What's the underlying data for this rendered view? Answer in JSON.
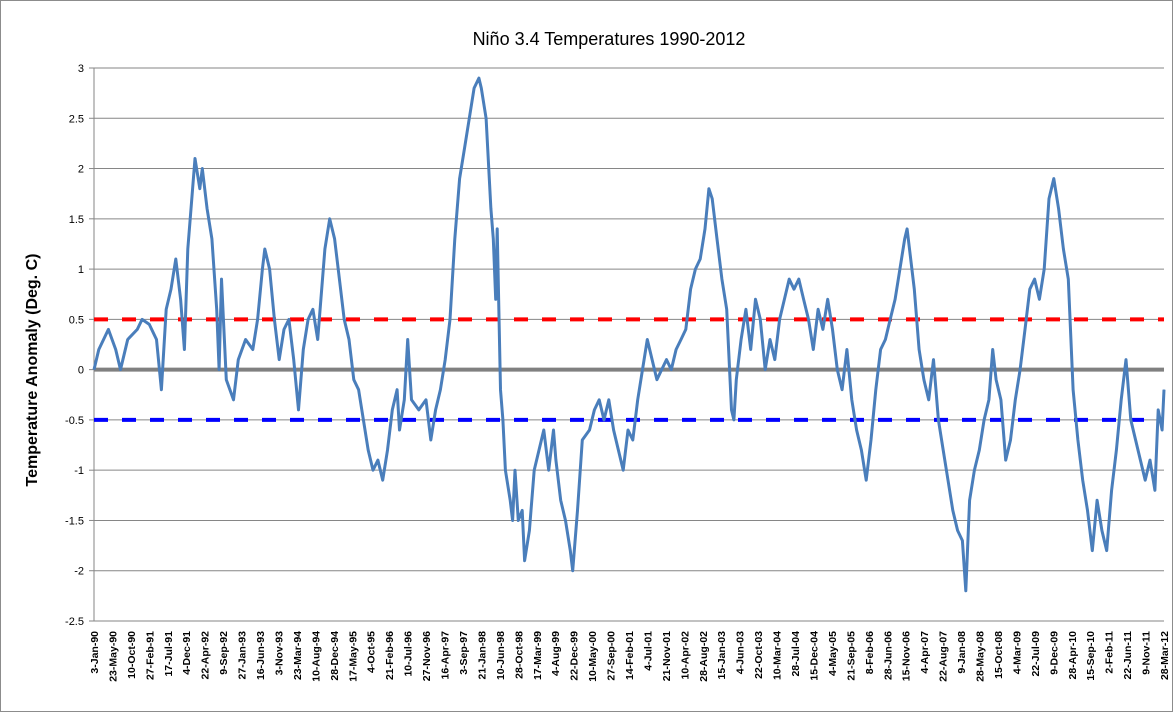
{
  "chart_data": {
    "type": "line",
    "title": "Niño 3.4 Temperatures 1990-2012",
    "xlabel": "",
    "ylabel": "Temperature Anomaly (Deg. C)",
    "ylim": [
      -2.5,
      3
    ],
    "yticks": [
      3,
      2.5,
      2,
      1.5,
      1,
      0.5,
      0,
      -0.5,
      -1,
      -1.5,
      -2,
      -2.5
    ],
    "ytick_labels": [
      "3",
      "2.5",
      "2",
      "1.5",
      "1",
      "0.5",
      "0",
      "-0.5",
      "-1",
      "-1.5",
      "-2",
      "-2.5"
    ],
    "xlim": [
      1990.0,
      2012.24
    ],
    "xtick_labels": [
      "3-Jan-90",
      "23-May-90",
      "10-Oct-90",
      "27-Feb-91",
      "17-Jul-91",
      "4-Dec-91",
      "22-Apr-92",
      "9-Sep-92",
      "27-Jan-93",
      "16-Jun-93",
      "3-Nov-93",
      "23-Mar-94",
      "10-Aug-94",
      "28-Dec-94",
      "17-May-95",
      "4-Oct-95",
      "21-Feb-96",
      "10-Jul-96",
      "27-Nov-96",
      "16-Apr-97",
      "3-Sep-97",
      "21-Jan-98",
      "10-Jun-98",
      "28-Oct-98",
      "17-Mar-99",
      "4-Aug-99",
      "22-Dec-99",
      "10-May-00",
      "27-Sep-00",
      "14-Feb-01",
      "4-Jul-01",
      "21-Nov-01",
      "10-Apr-02",
      "28-Aug-02",
      "15-Jan-03",
      "4-Jun-03",
      "22-Oct-03",
      "10-Mar-04",
      "28-Jul-04",
      "15-Dec-04",
      "4-May-05",
      "21-Sep-05",
      "8-Feb-06",
      "28-Jun-06",
      "15-Nov-06",
      "4-Apr-07",
      "22-Aug-07",
      "9-Jan-08",
      "28-May-08",
      "15-Oct-08",
      "4-Mar-09",
      "22-Jul-09",
      "9-Dec-09",
      "28-Apr-10",
      "15-Sep-10",
      "2-Feb-11",
      "22-Jun-11",
      "9-Nov-11",
      "28-Mar-12"
    ],
    "grid": true,
    "reference_lines": [
      {
        "name": "el-nino-threshold",
        "value": 0.5,
        "color": "#ff0000",
        "style": "dashed"
      },
      {
        "name": "zero-line",
        "value": 0,
        "color": "#808080",
        "style": "solid"
      },
      {
        "name": "la-nina-threshold",
        "value": -0.5,
        "color": "#0000ff",
        "style": "dashed"
      }
    ],
    "series": [
      {
        "name": "Niño 3.4 anomaly",
        "color": "#4a7ebb",
        "x": [
          1990.0,
          1990.1,
          1990.3,
          1990.45,
          1990.55,
          1990.7,
          1990.9,
          1991.0,
          1991.15,
          1991.3,
          1991.4,
          1991.5,
          1991.6,
          1991.7,
          1991.8,
          1991.88,
          1991.95,
          1992.05,
          1992.1,
          1992.2,
          1992.25,
          1992.35,
          1992.45,
          1992.55,
          1992.6,
          1992.65,
          1992.75,
          1992.9,
          1993.0,
          1993.15,
          1993.3,
          1993.4,
          1993.5,
          1993.55,
          1993.65,
          1993.75,
          1993.85,
          1993.95,
          1994.05,
          1994.15,
          1994.25,
          1994.35,
          1994.45,
          1994.55,
          1994.65,
          1994.7,
          1994.8,
          1994.9,
          1995.0,
          1995.1,
          1995.2,
          1995.3,
          1995.4,
          1995.5,
          1995.6,
          1995.7,
          1995.8,
          1995.9,
          1996.0,
          1996.1,
          1996.2,
          1996.3,
          1996.35,
          1996.45,
          1996.52,
          1996.6,
          1996.75,
          1996.9,
          1997.0,
          1997.1,
          1997.2,
          1997.3,
          1997.4,
          1997.5,
          1997.6,
          1997.7,
          1997.8,
          1997.9,
          1998.0,
          1998.05,
          1998.15,
          1998.25,
          1998.3,
          1998.35,
          1998.38,
          1998.45,
          1998.5,
          1998.55,
          1998.65,
          1998.7,
          1998.75,
          1998.82,
          1998.9,
          1998.95,
          1999.05,
          1999.15,
          1999.25,
          1999.35,
          1999.45,
          1999.55,
          1999.6,
          1999.7,
          1999.8,
          1999.9,
          1999.95,
          2000.05,
          2000.15,
          2000.3,
          2000.4,
          2000.5,
          2000.6,
          2000.7,
          2000.8,
          2000.9,
          2001.0,
          2001.1,
          2001.2,
          2001.3,
          2001.4,
          2001.5,
          2001.6,
          2001.7,
          2001.8,
          2001.9,
          2002.0,
          2002.1,
          2002.2,
          2002.3,
          2002.4,
          2002.5,
          2002.6,
          2002.7,
          2002.78,
          2002.85,
          2002.95,
          2003.05,
          2003.15,
          2003.25,
          2003.3,
          2003.35,
          2003.45,
          2003.55,
          2003.65,
          2003.75,
          2003.85,
          2003.95,
          2004.05,
          2004.15,
          2004.25,
          2004.35,
          2004.45,
          2004.55,
          2004.65,
          2004.75,
          2004.85,
          2004.95,
          2005.05,
          2005.15,
          2005.25,
          2005.35,
          2005.45,
          2005.55,
          2005.65,
          2005.75,
          2005.85,
          2005.95,
          2006.05,
          2006.15,
          2006.25,
          2006.35,
          2006.45,
          2006.55,
          2006.65,
          2006.75,
          2006.85,
          2006.9,
          2006.95,
          2007.05,
          2007.15,
          2007.25,
          2007.35,
          2007.45,
          2007.55,
          2007.65,
          2007.75,
          2007.85,
          2007.95,
          2008.05,
          2008.12,
          2008.2,
          2008.3,
          2008.4,
          2008.5,
          2008.6,
          2008.68,
          2008.75,
          2008.85,
          2008.95,
          2009.05,
          2009.15,
          2009.25,
          2009.35,
          2009.45,
          2009.55,
          2009.65,
          2009.75,
          2009.85,
          2009.95,
          2010.05,
          2010.15,
          2010.25,
          2010.35,
          2010.45,
          2010.55,
          2010.65,
          2010.75,
          2010.85,
          2010.95,
          2011.05,
          2011.15,
          2011.25,
          2011.35,
          2011.45,
          2011.55,
          2011.65,
          2011.75,
          2011.85,
          2011.95,
          2012.05,
          2012.12,
          2012.2,
          2012.24
        ],
        "values": [
          0.0,
          0.2,
          0.4,
          0.2,
          0.0,
          0.3,
          0.4,
          0.5,
          0.45,
          0.3,
          -0.2,
          0.6,
          0.8,
          1.1,
          0.7,
          0.2,
          1.2,
          1.8,
          2.1,
          1.8,
          2.0,
          1.6,
          1.3,
          0.6,
          0.0,
          0.9,
          -0.1,
          -0.3,
          0.1,
          0.3,
          0.2,
          0.5,
          1.0,
          1.2,
          1.0,
          0.5,
          0.1,
          0.4,
          0.5,
          0.1,
          -0.4,
          0.2,
          0.5,
          0.6,
          0.3,
          0.6,
          1.2,
          1.5,
          1.3,
          0.9,
          0.5,
          0.3,
          -0.1,
          -0.2,
          -0.5,
          -0.8,
          -1.0,
          -0.9,
          -1.1,
          -0.8,
          -0.4,
          -0.2,
          -0.6,
          -0.3,
          0.3,
          -0.3,
          -0.4,
          -0.3,
          -0.7,
          -0.4,
          -0.2,
          0.1,
          0.5,
          1.3,
          1.9,
          2.2,
          2.5,
          2.8,
          2.9,
          2.8,
          2.5,
          1.6,
          1.3,
          0.7,
          1.4,
          -0.2,
          -0.5,
          -1.0,
          -1.3,
          -1.5,
          -1.0,
          -1.5,
          -1.4,
          -1.9,
          -1.6,
          -1.0,
          -0.8,
          -0.6,
          -1.0,
          -0.6,
          -0.9,
          -1.3,
          -1.5,
          -1.8,
          -2.0,
          -1.4,
          -0.7,
          -0.6,
          -0.4,
          -0.3,
          -0.5,
          -0.3,
          -0.6,
          -0.8,
          -1.0,
          -0.6,
          -0.7,
          -0.3,
          0.0,
          0.3,
          0.1,
          -0.1,
          0.0,
          0.1,
          0.0,
          0.2,
          0.3,
          0.4,
          0.8,
          1.0,
          1.1,
          1.4,
          1.8,
          1.7,
          1.3,
          0.9,
          0.6,
          -0.4,
          -0.5,
          -0.1,
          0.3,
          0.6,
          0.2,
          0.7,
          0.5,
          0.0,
          0.3,
          0.1,
          0.5,
          0.7,
          0.9,
          0.8,
          0.9,
          0.7,
          0.5,
          0.2,
          0.6,
          0.4,
          0.7,
          0.4,
          0.0,
          -0.2,
          0.2,
          -0.3,
          -0.6,
          -0.8,
          -1.1,
          -0.7,
          -0.2,
          0.2,
          0.3,
          0.5,
          0.7,
          1.0,
          1.3,
          1.4,
          1.2,
          0.8,
          0.2,
          -0.1,
          -0.3,
          0.1,
          -0.5,
          -0.8,
          -1.1,
          -1.4,
          -1.6,
          -1.7,
          -2.2,
          -1.3,
          -1.0,
          -0.8,
          -0.5,
          -0.3,
          0.2,
          -0.1,
          -0.3,
          -0.9,
          -0.7,
          -0.3,
          0.0,
          0.4,
          0.8,
          0.9,
          0.7,
          1.0,
          1.7,
          1.9,
          1.6,
          1.2,
          0.9,
          -0.2,
          -0.7,
          -1.1,
          -1.4,
          -1.8,
          -1.3,
          -1.6,
          -1.8,
          -1.2,
          -0.8,
          -0.3,
          0.1,
          -0.5,
          -0.7,
          -0.9,
          -1.1,
          -0.9,
          -1.2,
          -0.4,
          -0.6,
          -0.2
        ]
      }
    ]
  }
}
